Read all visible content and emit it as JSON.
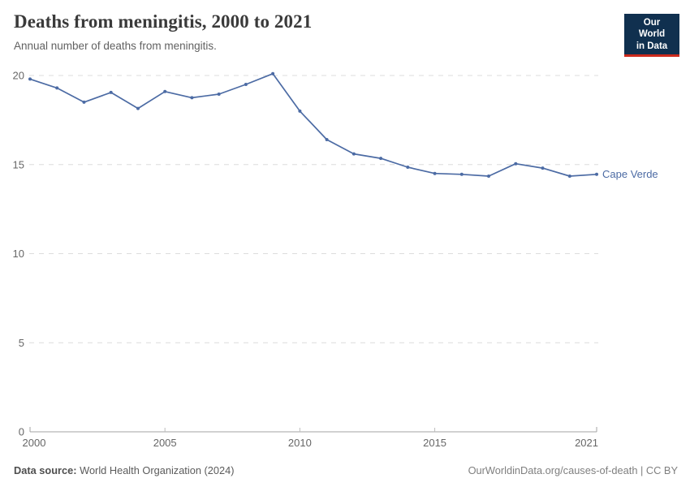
{
  "header": {
    "title": "Deaths from meningitis, 2000 to 2021",
    "subtitle": "Annual number of deaths from meningitis.",
    "logo_line1": "Our World",
    "logo_line2": "in Data"
  },
  "chart_data": {
    "type": "line",
    "title": "Deaths from meningitis, 2000 to 2021",
    "subtitle": "Annual number of deaths from meningitis.",
    "xlabel": "",
    "ylabel": "",
    "x": [
      2000,
      2001,
      2002,
      2003,
      2004,
      2005,
      2006,
      2007,
      2008,
      2009,
      2010,
      2011,
      2012,
      2013,
      2014,
      2015,
      2016,
      2017,
      2018,
      2019,
      2020,
      2021
    ],
    "series": [
      {
        "name": "Cape Verde",
        "color": "#4c6ba4",
        "values": [
          19.8,
          19.3,
          18.5,
          19.05,
          18.15,
          19.1,
          18.75,
          18.95,
          19.5,
          20.1,
          18.0,
          16.4,
          15.6,
          15.35,
          14.85,
          14.5,
          14.45,
          14.35,
          15.05,
          14.8,
          14.35,
          14.45
        ]
      }
    ],
    "xticks": [
      2000,
      2005,
      2010,
      2015,
      2021
    ],
    "yticks": [
      0,
      5,
      10,
      15,
      20
    ],
    "ylim": [
      0,
      20
    ],
    "grid": "horizontal dashed",
    "legend": "inline label at line end"
  },
  "footer": {
    "source_label": "Data source:",
    "source_value": "World Health Organization (2024)",
    "license": "OurWorldinData.org/causes-of-death | CC BY"
  },
  "colors": {
    "line": "#4c6ba4",
    "grid": "#dcdcdc",
    "axis": "#a3a3a3",
    "tick": "#bdbdbd",
    "axis_text": "#666666",
    "logo_bg": "#10304f",
    "logo_accent": "#cc2a1d"
  }
}
